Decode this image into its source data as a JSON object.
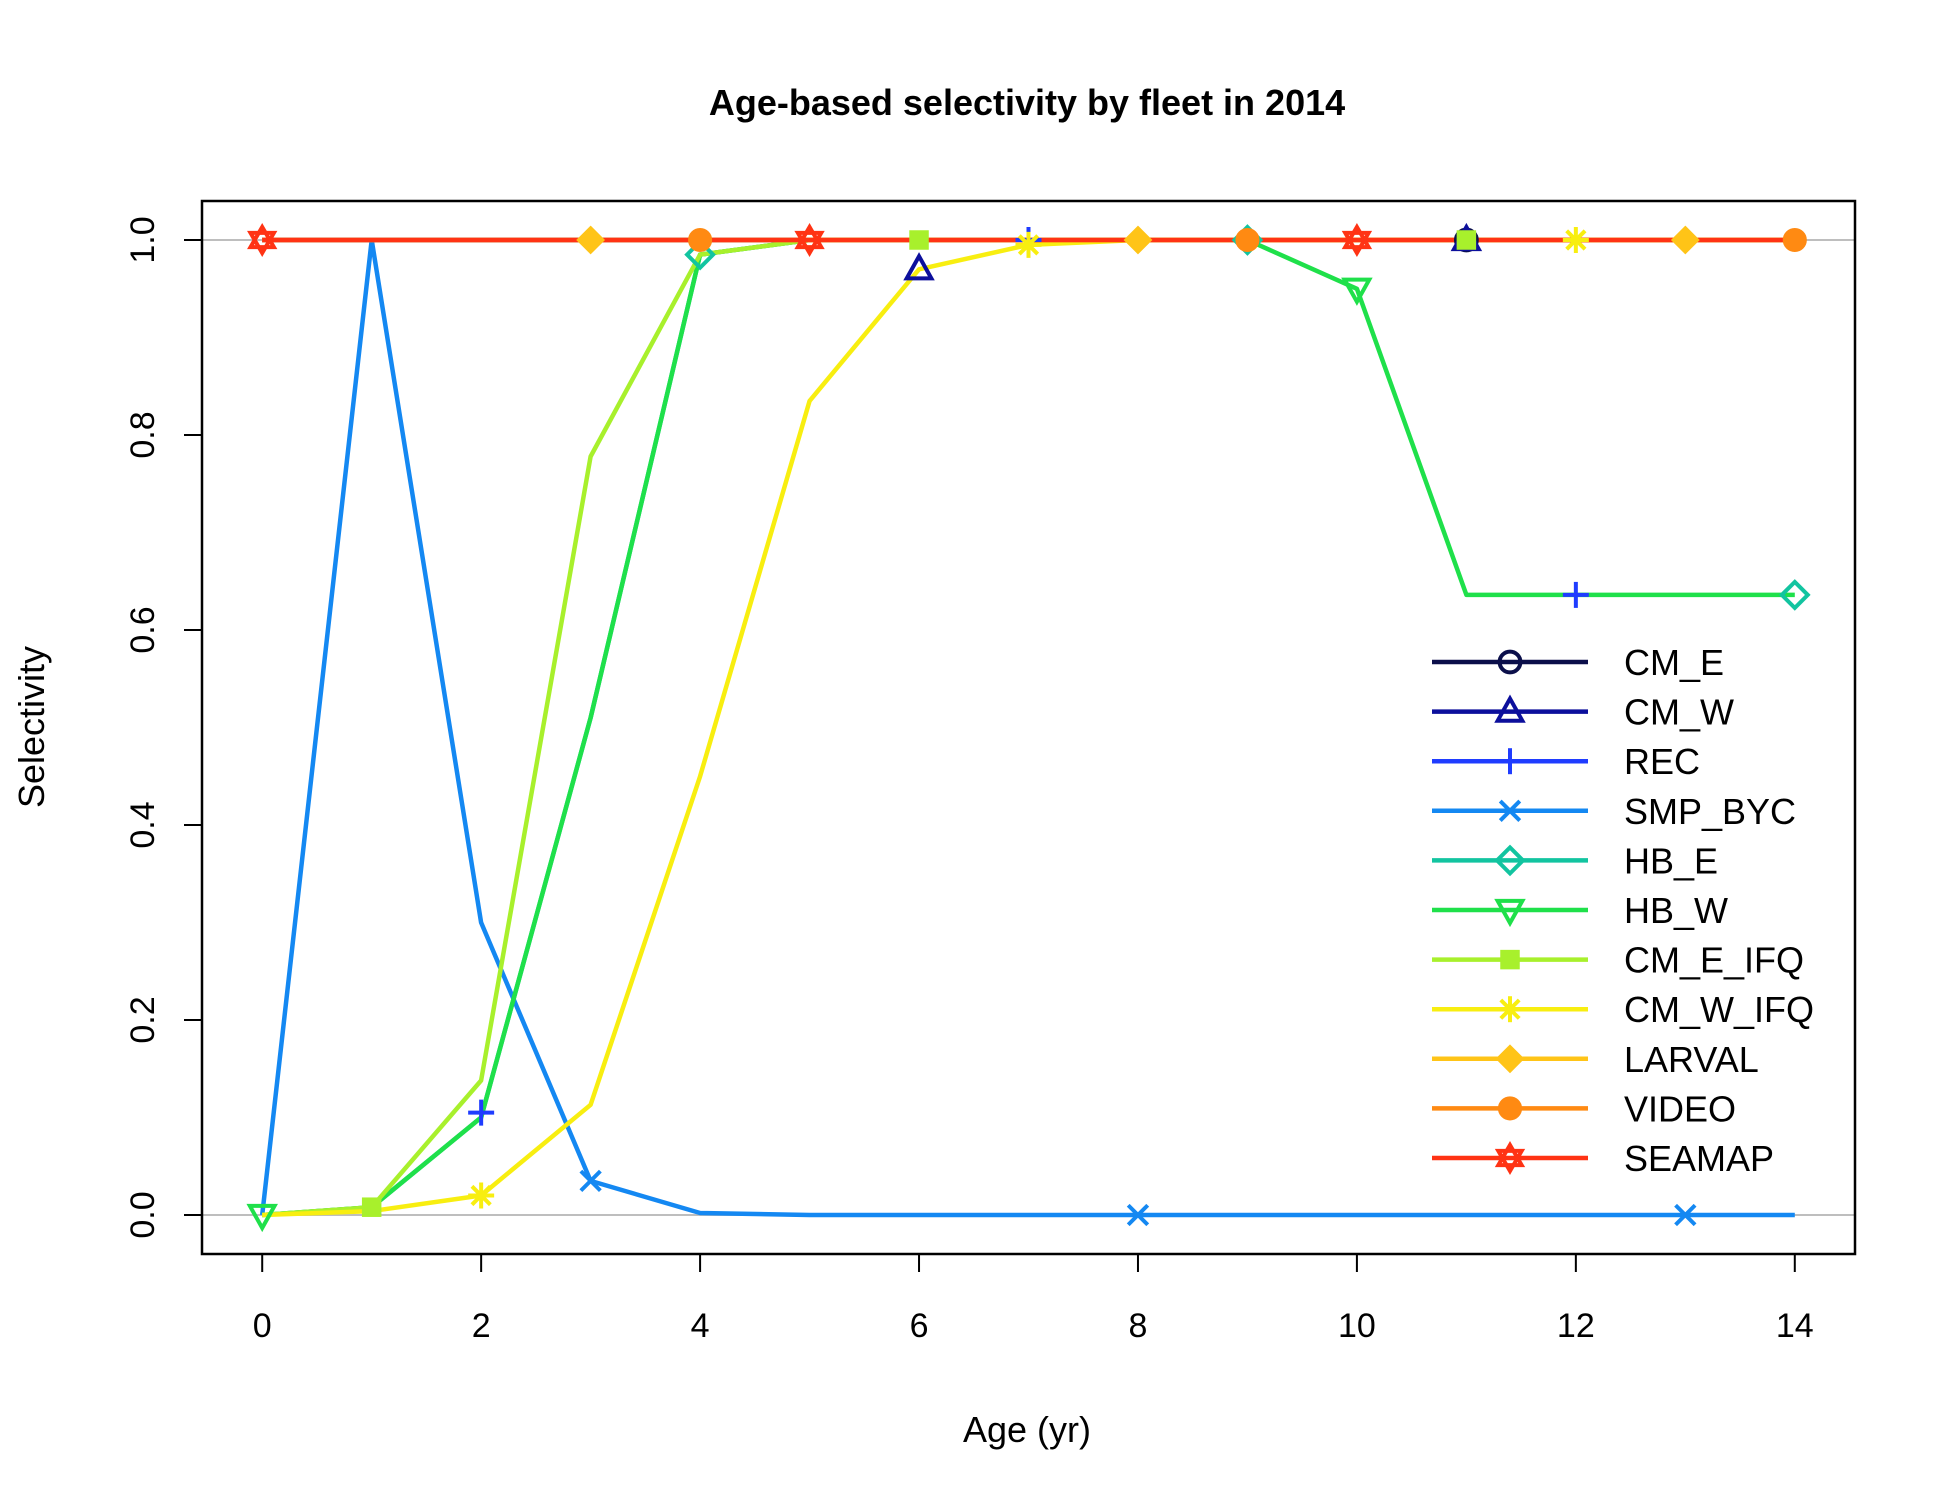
{
  "chart_data": {
    "type": "line",
    "title": "Age-based selectivity by fleet in 2014",
    "xlabel": "Age (yr)",
    "ylabel": "Selectivity",
    "xlim": [
      -0.55,
      14.55
    ],
    "ylim": [
      -0.04,
      1.04
    ],
    "x_ticks": [
      "0",
      "2",
      "4",
      "6",
      "8",
      "10",
      "12",
      "14"
    ],
    "y_ticks": [
      "0.0",
      "0.2",
      "0.4",
      "0.6",
      "0.8",
      "1.0"
    ],
    "reference_lines_y": [
      0,
      1
    ],
    "legend_position": "right",
    "x": [
      0,
      1,
      2,
      3,
      4,
      5,
      6,
      7,
      8,
      9,
      10,
      11,
      12,
      13,
      14
    ],
    "series": [
      {
        "name": "CM_E",
        "color": "#0b0f4a",
        "marker": "circle-open",
        "values": [
          1,
          1,
          1,
          1,
          1,
          1,
          1,
          1,
          1,
          1,
          1,
          1,
          1,
          1,
          1
        ],
        "marker_x": [
          11
        ]
      },
      {
        "name": "CM_W",
        "color": "#0c0f9c",
        "marker": "triangle-open",
        "values": [
          1,
          1,
          1,
          1,
          1,
          1,
          1,
          1,
          1,
          1,
          1,
          1,
          1,
          1,
          1
        ],
        "marker_x": [
          11
        ]
      },
      {
        "name": "REC",
        "color": "#1f3cff",
        "marker": "plus",
        "values": [
          1,
          1,
          1,
          1,
          1,
          1,
          1,
          1,
          1,
          1,
          1,
          1,
          1,
          1,
          1
        ],
        "marker_x": [
          7
        ]
      },
      {
        "name": "SMP_BYC",
        "color": "#1488f2",
        "marker": "cross",
        "values": [
          0,
          1,
          0.3,
          0.035,
          0.002,
          0,
          0,
          0,
          0,
          0,
          0,
          0,
          0,
          0,
          0
        ],
        "marker_x": [
          3,
          8,
          13
        ]
      },
      {
        "name": "HB_E",
        "color": "#12c4a0",
        "marker": "diamond-open",
        "values": [
          0,
          0.008,
          0.1,
          0.51,
          0.985,
          1,
          1,
          1,
          1,
          1,
          1,
          1,
          1,
          1,
          1
        ],
        "marker_x": [
          4,
          9
        ]
      },
      {
        "name": "HB_W",
        "color": "#1fe04a",
        "marker": "triangle-down-open",
        "values": [
          0,
          0.008,
          0.1,
          0.51,
          0.985,
          1,
          1,
          1,
          1,
          1,
          0.95,
          0.636,
          0.636,
          0.636,
          0.636
        ],
        "marker_x": [
          0,
          10
        ]
      },
      {
        "name": "CM_E_IFQ",
        "color": "#a8f02c",
        "marker": "square",
        "values": [
          0,
          0.008,
          0.138,
          0.778,
          0.985,
          1,
          1,
          1,
          1,
          1,
          1,
          1,
          1,
          1,
          1
        ],
        "marker_x": [
          1,
          6,
          11
        ]
      },
      {
        "name": "CM_W_IFQ",
        "color": "#f8ee10",
        "marker": "asterisk",
        "values": [
          0,
          0.004,
          0.02,
          0.113,
          0.45,
          0.835,
          0.97,
          0.995,
          1,
          1,
          1,
          1,
          1,
          1,
          1
        ],
        "marker_x": [
          2,
          7,
          12
        ]
      },
      {
        "name": "LARVAL",
        "color": "#ffc417",
        "marker": "diamond",
        "values": [
          1,
          1,
          1,
          1,
          1,
          1,
          1,
          1,
          1,
          1,
          1,
          1,
          1,
          1,
          1
        ],
        "marker_x": [
          3,
          8,
          13
        ]
      },
      {
        "name": "VIDEO",
        "color": "#ff8a12",
        "marker": "circle",
        "values": [
          1,
          1,
          1,
          1,
          1,
          1,
          1,
          1,
          1,
          1,
          1,
          1,
          1,
          1,
          1
        ],
        "marker_x": [
          4,
          9,
          14
        ]
      },
      {
        "name": "SEAMAP",
        "color": "#ff3314",
        "marker": "star",
        "values": [
          1,
          1,
          1,
          1,
          1,
          1,
          1,
          1,
          1,
          1,
          1,
          1,
          1,
          1,
          1
        ],
        "marker_x": [
          0,
          5,
          10
        ]
      }
    ],
    "extra_markers": [
      {
        "series": "REC",
        "x": 2,
        "y": 0.105
      },
      {
        "series": "REC",
        "x": 12,
        "y": 0.636
      },
      {
        "series": "CM_W",
        "x": 6,
        "y": 0.97
      },
      {
        "series": "HB_E",
        "x": 14,
        "y": 0.636
      }
    ]
  }
}
